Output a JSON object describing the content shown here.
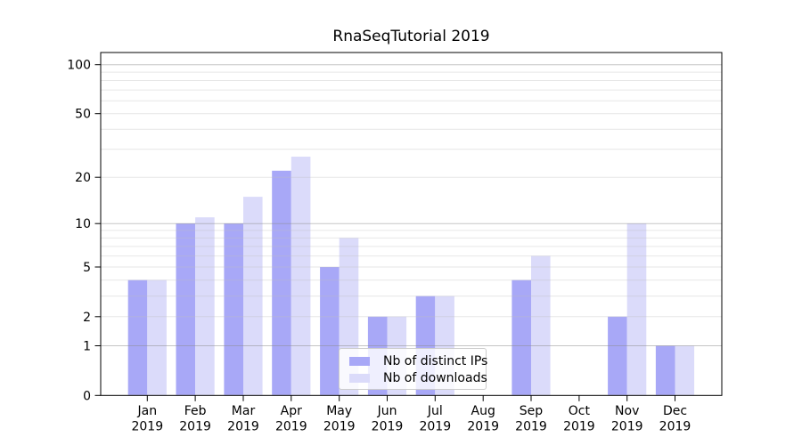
{
  "title": "RnaSeqTutorial 2019",
  "chart_data": {
    "type": "bar",
    "title": "RnaSeqTutorial 2019",
    "categories": [
      "Jan",
      "Feb",
      "Mar",
      "Apr",
      "May",
      "Jun",
      "Jul",
      "Aug",
      "Sep",
      "Oct",
      "Nov",
      "Dec"
    ],
    "category_year": "2019",
    "series": [
      {
        "name": "Nb of distinct IPs",
        "color": "#a8a8f7",
        "values": [
          4,
          10,
          10,
          22,
          5,
          2,
          3,
          0,
          4,
          0,
          2,
          1
        ]
      },
      {
        "name": "Nb of downloads",
        "color": "#dbdbfa",
        "values": [
          4,
          11,
          15,
          27,
          8,
          2,
          3,
          0,
          6,
          0,
          10,
          1
        ]
      }
    ],
    "y_scale": "symlog",
    "y_axis_tick_labels": [
      0,
      1,
      2,
      5,
      10,
      20,
      50,
      100
    ],
    "y_major_gridlines": [
      1,
      10,
      100
    ],
    "y_minor_gridlines": [
      2,
      3,
      4,
      5,
      6,
      7,
      8,
      9,
      20,
      30,
      40,
      50,
      60,
      70,
      80,
      90
    ],
    "ylim": [
      0,
      118
    ],
    "xlabel": "",
    "ylabel": "",
    "grid": true,
    "legend_position": "lower center"
  },
  "colors": {
    "bar_distinct_ips": "#a8a8f7",
    "bar_downloads": "#dbdbfa",
    "grid_major": "#c6c6c6",
    "grid_minor": "#e9e9e9",
    "axis_spine": "#000000",
    "tick_label": "#000000",
    "legend_border": "#cccccc",
    "background": "#ffffff"
  }
}
